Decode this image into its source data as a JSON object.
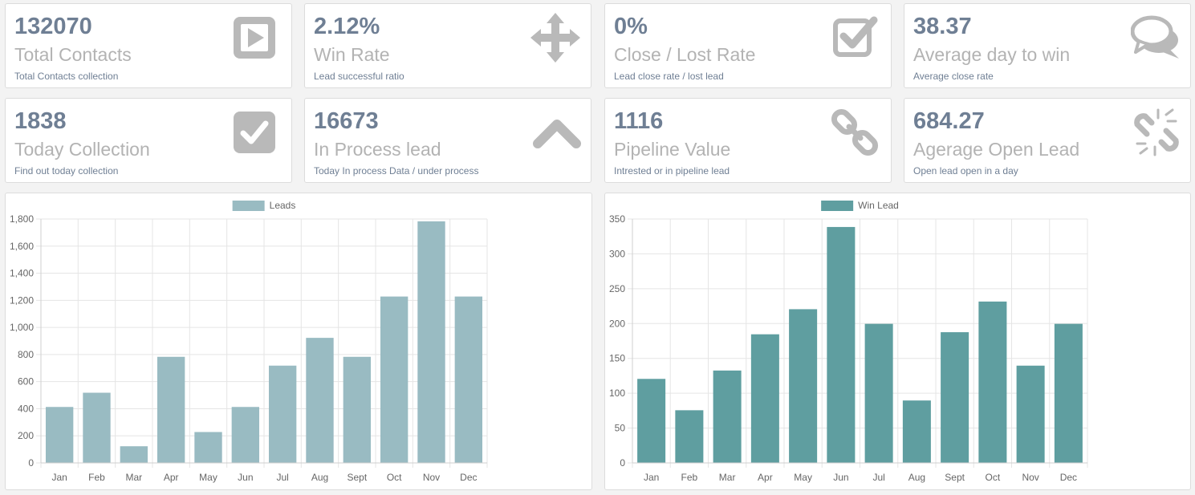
{
  "stats": [
    {
      "value": "132070",
      "label": "Total Contacts",
      "desc": "Total Contacts collection",
      "icon": "play-square-icon"
    },
    {
      "value": "2.12%",
      "label": "Win Rate",
      "desc": "Lead successful ratio",
      "icon": "move-arrows-icon"
    },
    {
      "value": "0%",
      "label": "Close / Lost Rate",
      "desc": "Lead close rate / lost lead",
      "icon": "check-square-outline-icon"
    },
    {
      "value": "38.37",
      "label": "Average day to win",
      "desc": "Average close rate",
      "icon": "comments-icon"
    },
    {
      "value": "1838",
      "label": "Today Collection",
      "desc": "Find out today collection",
      "icon": "check-square-icon"
    },
    {
      "value": "16673",
      "label": "In Process lead",
      "desc": "Today In process Data / under process",
      "icon": "chevron-up-icon"
    },
    {
      "value": "1116",
      "label": "Pipeline Value",
      "desc": "Intrested or in pipeline lead",
      "icon": "link-icon"
    },
    {
      "value": "684.27",
      "label": "Agerage Open Lead",
      "desc": "Open lead open in a day",
      "icon": "unlink-icon"
    }
  ],
  "colors": {
    "stat_value": "#6f7f94",
    "stat_label": "#b3b3b3",
    "icon": "#b9b9b9",
    "leads_bar": "#99bbc2",
    "win_bar": "#5f9ea0",
    "grid": "#e5e5e5",
    "axis_text": "#666666"
  },
  "chart_data": [
    {
      "type": "bar",
      "legend": "Leads",
      "color": "#99bbc2",
      "categories": [
        "Jan",
        "Feb",
        "Mar",
        "Apr",
        "May",
        "Jun",
        "Jul",
        "Aug",
        "Sept",
        "Oct",
        "Nov",
        "Dec"
      ],
      "values": [
        410,
        515,
        120,
        780,
        225,
        410,
        715,
        920,
        780,
        1225,
        1780,
        1225
      ],
      "ylim": [
        0,
        1800
      ],
      "yticks": [
        0,
        200,
        400,
        600,
        800,
        1000,
        1200,
        1400,
        1600,
        1800
      ],
      "ytick_labels": [
        "0",
        "200",
        "400",
        "600",
        "800",
        "1,000",
        "1,200",
        "1,400",
        "1,600",
        "1,800"
      ]
    },
    {
      "type": "bar",
      "legend": "Win Lead",
      "color": "#5f9ea0",
      "categories": [
        "Jan",
        "Feb",
        "Mar",
        "Apr",
        "May",
        "Jun",
        "Jul",
        "Aug",
        "Sept",
        "Oct",
        "Nov",
        "Dec"
      ],
      "values": [
        120,
        75,
        132,
        184,
        220,
        338,
        199,
        89,
        187,
        231,
        139,
        199
      ],
      "ylim": [
        0,
        350
      ],
      "yticks": [
        0,
        50,
        100,
        150,
        200,
        250,
        300,
        350
      ],
      "ytick_labels": [
        "0",
        "50",
        "100",
        "150",
        "200",
        "250",
        "300",
        "350"
      ]
    }
  ]
}
